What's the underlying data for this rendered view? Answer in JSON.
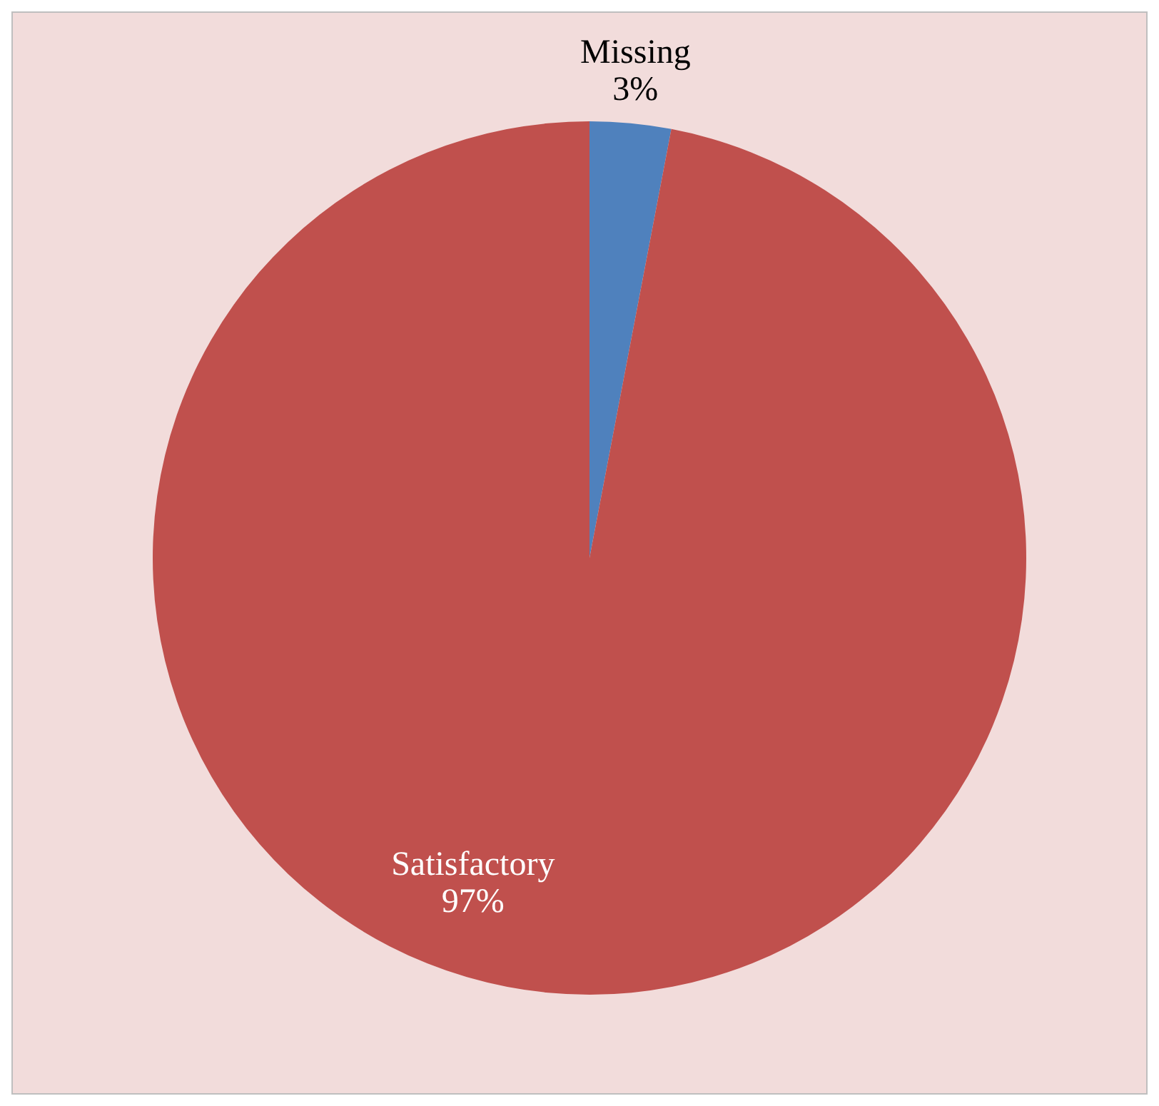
{
  "chart_data": {
    "type": "pie",
    "categories": [
      "Missing",
      "Satisfactory"
    ],
    "values": [
      3,
      97
    ],
    "colors": [
      "#4f81bd",
      "#c0504d"
    ],
    "value_labels": [
      "3%",
      "97%"
    ],
    "legend": false
  }
}
